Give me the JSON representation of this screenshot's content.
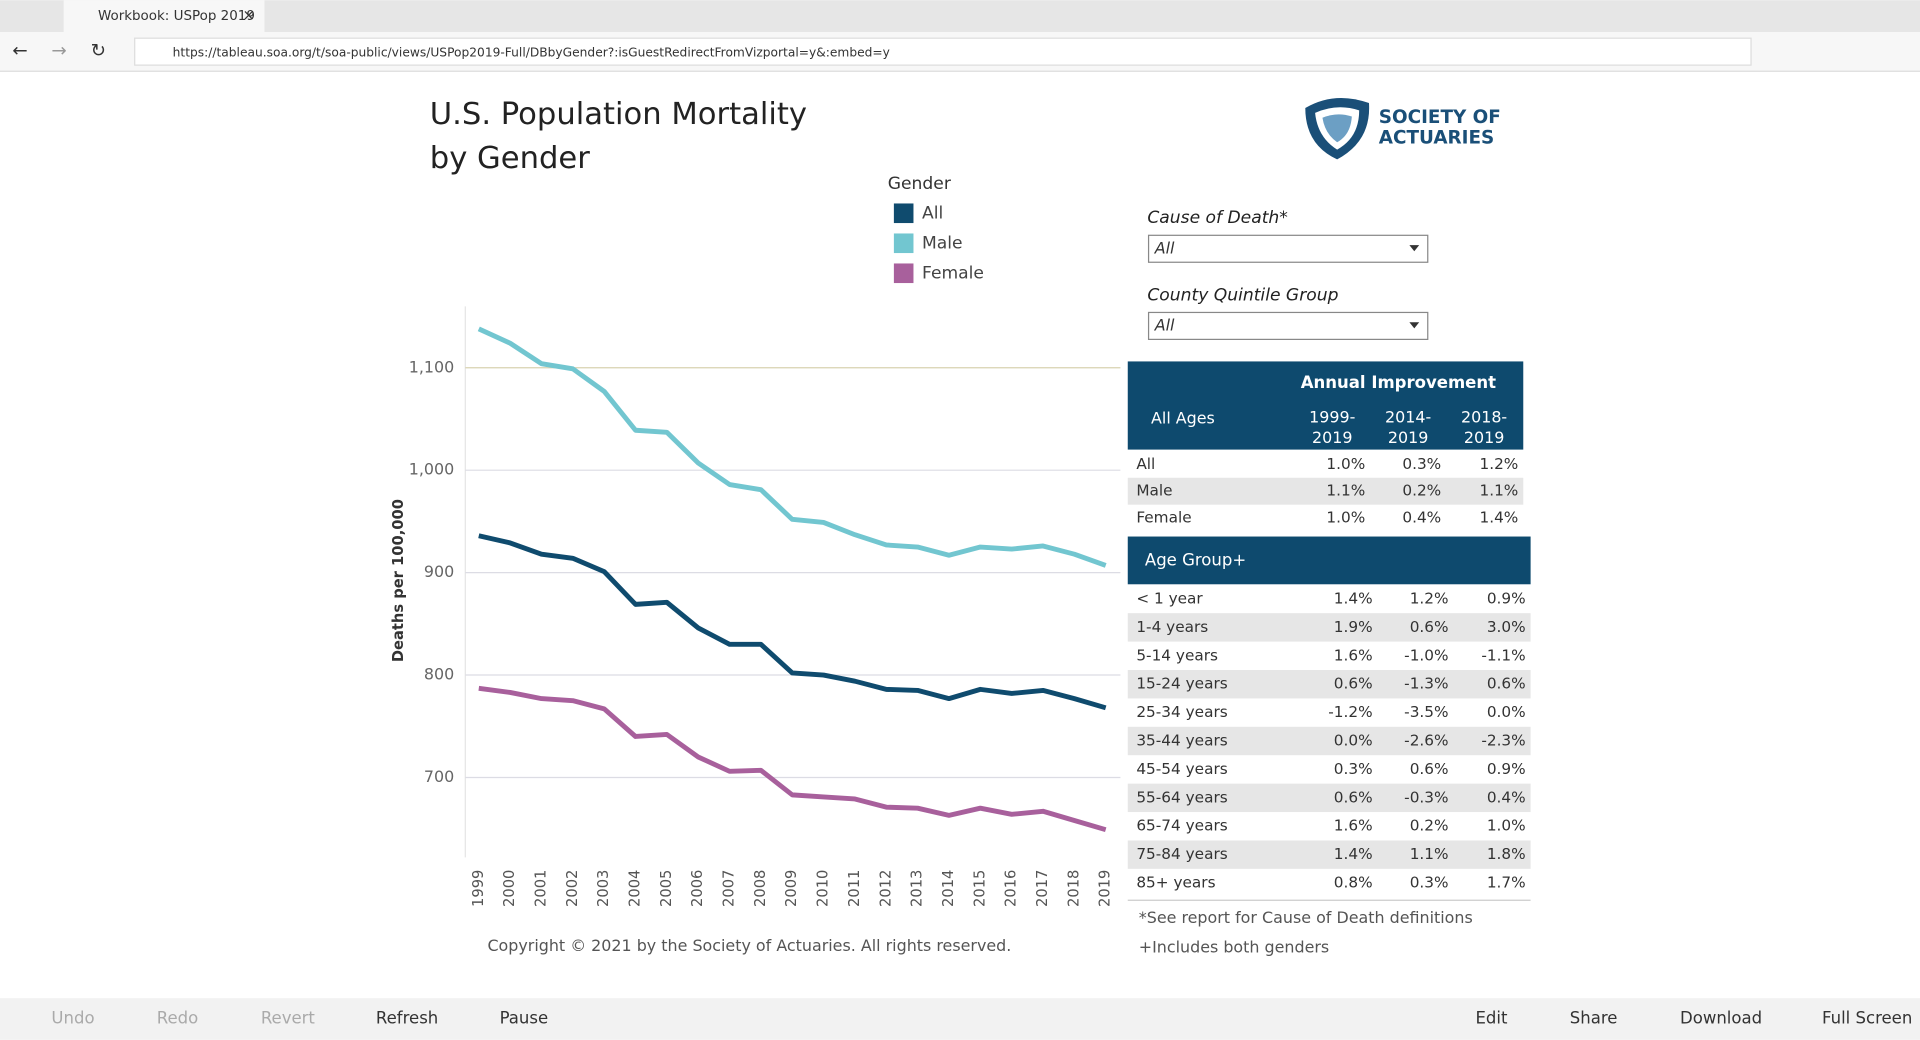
{
  "browser": {
    "tab_title": "Workbook: USPop 2019",
    "url": "https://tableau.soa.org/t/soa-public/views/USPop2019-Full/DBbyGender?:isGuestRedirectFromVizportal=y&:embed=y"
  },
  "header": {
    "title_lines": [
      "U.S. Population Mortality",
      "by Gender"
    ],
    "logo_lines": [
      "SOCIETY OF",
      "ACTUARIES"
    ]
  },
  "chart_data": {
    "type": "line",
    "y_label": "Deaths per 100,000",
    "legend_title": "Gender",
    "categories": [
      "1999",
      "2000",
      "2001",
      "2002",
      "2003",
      "2004",
      "2005",
      "2006",
      "2007",
      "2008",
      "2009",
      "2010",
      "2011",
      "2012",
      "2013",
      "2014",
      "2015",
      "2016",
      "2017",
      "2018",
      "2019"
    ],
    "series": [
      {
        "name": "All",
        "color": "#0f4b6e",
        "values": [
          936,
          929,
          918,
          914,
          901,
          869,
          871,
          846,
          830,
          830,
          802,
          800,
          794,
          786,
          785,
          777,
          786,
          782,
          785,
          777,
          768
        ]
      },
      {
        "name": "Male",
        "color": "#72c6d0",
        "values": [
          1138,
          1124,
          1104,
          1099,
          1077,
          1039,
          1037,
          1007,
          986,
          981,
          952,
          949,
          937,
          927,
          925,
          917,
          925,
          923,
          926,
          918,
          907
        ]
      },
      {
        "name": "Female",
        "color": "#a8609c",
        "values": [
          787,
          783,
          777,
          775,
          767,
          740,
          742,
          720,
          706,
          707,
          683,
          681,
          679,
          671,
          670,
          663,
          670,
          664,
          667,
          658,
          649
        ]
      }
    ],
    "ylim": [
      622,
      1160
    ],
    "yticks": [
      {
        "value": 1100,
        "label": "1,100"
      },
      {
        "value": 1000,
        "label": "1,000"
      },
      900,
      800,
      700
    ],
    "grid": true
  },
  "filters": [
    {
      "label": "Cause of Death*",
      "value": "All"
    },
    {
      "label": "County Quintile Group",
      "value": "All"
    }
  ],
  "table": {
    "title": "Annual Improvement",
    "row_header": "All Ages",
    "columns": [
      [
        "1999-",
        "2019"
      ],
      [
        "2014-",
        "2019"
      ],
      [
        "2018-",
        "2019"
      ]
    ],
    "rows": [
      [
        "All",
        "1.0%",
        "0.3%",
        "1.2%"
      ],
      [
        "Male",
        "1.1%",
        "0.2%",
        "1.1%"
      ],
      [
        "Female",
        "1.0%",
        "0.4%",
        "1.4%"
      ]
    ],
    "age_header": "Age Group+",
    "age_rows": [
      [
        "< 1 year",
        "1.4%",
        "1.2%",
        "0.9%"
      ],
      [
        "1-4 years",
        "1.9%",
        "0.6%",
        "3.0%"
      ],
      [
        "5-14 years",
        "1.6%",
        "-1.0%",
        "-1.1%"
      ],
      [
        "15-24 years",
        "0.6%",
        "-1.3%",
        "0.6%"
      ],
      [
        "25-34 years",
        "-1.2%",
        "-3.5%",
        "0.0%"
      ],
      [
        "35-44 years",
        "0.0%",
        "-2.6%",
        "-2.3%"
      ],
      [
        "45-54 years",
        "0.3%",
        "0.6%",
        "0.9%"
      ],
      [
        "55-64 years",
        "0.6%",
        "-0.3%",
        "0.4%"
      ],
      [
        "65-74 years",
        "1.6%",
        "0.2%",
        "1.0%"
      ],
      [
        "75-84 years",
        "1.4%",
        "1.1%",
        "1.8%"
      ],
      [
        "85+ years",
        "0.8%",
        "0.3%",
        "1.7%"
      ]
    ]
  },
  "notes": [
    "*See report for Cause of Death definitions",
    "+Includes both genders"
  ],
  "copyright": "Copyright © 2021 by the Society of Actuaries. All rights reserved.",
  "toolbar": {
    "left": [
      "Undo",
      "Redo",
      "Revert",
      "Refresh",
      "Pause"
    ],
    "right": [
      "Edit",
      "Share",
      "Download",
      "Full Screen"
    ]
  }
}
